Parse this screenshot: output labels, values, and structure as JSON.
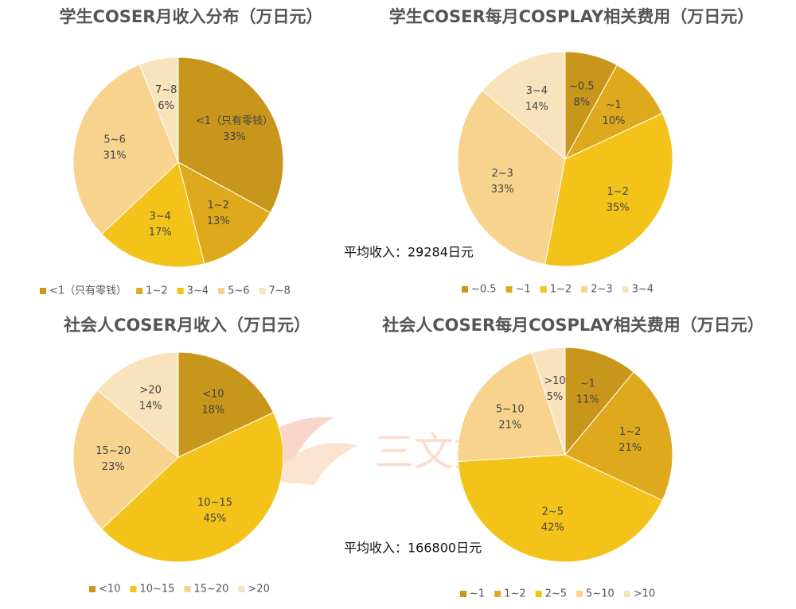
{
  "chart_data": [
    {
      "type": "pie",
      "title": "学生COSER月收入分布（万日元）",
      "annotation": "平均收入：29284日元",
      "categories": [
        "<1（只有零钱）",
        "1~2",
        "3~4",
        "5~6",
        "7~8"
      ],
      "values": [
        33,
        13,
        17,
        31,
        6
      ],
      "value_labels": [
        "33%",
        "13%",
        "17%",
        "31%",
        "6%"
      ],
      "colors": [
        "#c8961a",
        "#dfa91d",
        "#f4c31a",
        "#f7d38e",
        "#f9e3bd"
      ],
      "legend": "bottom"
    },
    {
      "type": "pie",
      "title": "学生COSER每月COSPLAY相关费用（万日元）",
      "categories": [
        "~0.5",
        "~1",
        "1~2",
        "2~3",
        "3~4"
      ],
      "values": [
        8,
        10,
        35,
        33,
        14
      ],
      "value_labels": [
        "8%",
        "10%",
        "35%",
        "33%",
        "14%"
      ],
      "colors": [
        "#c8961a",
        "#dfa91d",
        "#f4c31a",
        "#f7d38e",
        "#f9e3bd"
      ],
      "legend": "bottom"
    },
    {
      "type": "pie",
      "title": "社会人COSER月收入（万日元）",
      "annotation": "平均收入：166800日元",
      "categories": [
        "<10",
        "10~15",
        "15~20",
        ">20"
      ],
      "values": [
        18,
        45,
        23,
        14
      ],
      "value_labels": [
        "18%",
        "45%",
        "23%",
        "14%"
      ],
      "colors": [
        "#c8961a",
        "#f4c31a",
        "#f7d38e",
        "#f9e3bd"
      ],
      "legend": "bottom"
    },
    {
      "type": "pie",
      "title": "社会人COSER每月COSPLAY相关费用（万日元）",
      "categories": [
        "~1",
        "1~2",
        "2~5",
        "5~10",
        ">10"
      ],
      "values": [
        11,
        21,
        42,
        21,
        5
      ],
      "value_labels": [
        "11%",
        "21%",
        "42%",
        "21%",
        "5%"
      ],
      "colors": [
        "#c8961a",
        "#dfa91d",
        "#f4c31a",
        "#f7d38e",
        "#f9e3bd"
      ],
      "legend": "bottom"
    }
  ],
  "watermark": "三文娱"
}
